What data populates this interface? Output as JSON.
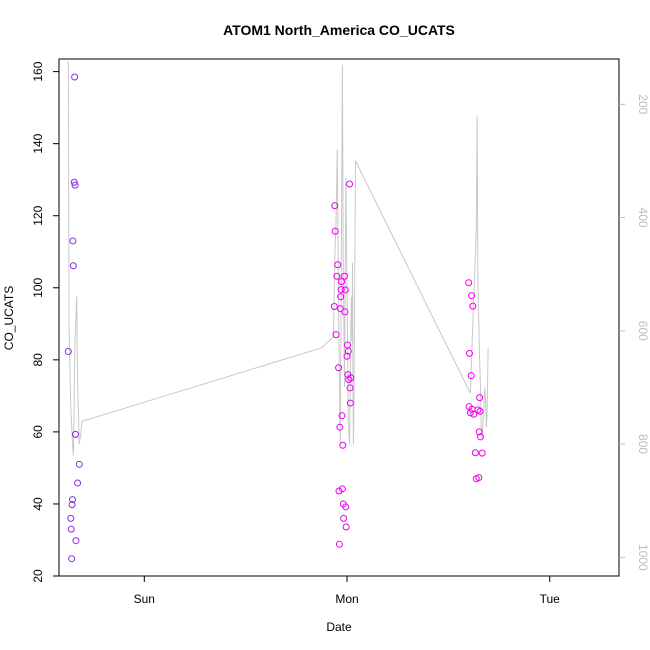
{
  "chart_data": {
    "type": "scatter",
    "title": "ATOM1 North_America CO_UCATS",
    "xlabel": "Date",
    "ylabel": "CO_UCATS",
    "x_unit": "hours since Sat 00:00",
    "xlim": [
      37.9,
      104.2
    ],
    "ylim": [
      20,
      163.5
    ],
    "x_ticks": [
      {
        "value": 48,
        "label": "Sun"
      },
      {
        "value": 72,
        "label": "Mon"
      },
      {
        "value": 96,
        "label": "Tue"
      }
    ],
    "y_ticks": [
      20,
      40,
      60,
      80,
      100,
      120,
      140,
      160
    ],
    "y2_label_color": "#bdbdbd",
    "y2_line_color": "#c8c8c8",
    "y2": {
      "range_top": 120,
      "range_bottom": 1033,
      "ticks": [
        200,
        400,
        600,
        800,
        1000
      ],
      "reversed": true
    },
    "gray_line": {
      "name": "pressure",
      "x": [
        39.0,
        39.1,
        39.3,
        39.5,
        39.6,
        39.8,
        40.0,
        40.1,
        40.3,
        40.5,
        40.6,
        69.0,
        70.4,
        70.55,
        70.7,
        70.85,
        71.0,
        71.1,
        71.2,
        71.3,
        71.45,
        71.55,
        71.7,
        71.85,
        72.0,
        72.15,
        72.3,
        72.5,
        72.6,
        72.65,
        72.7,
        72.75,
        72.8,
        73.0,
        86.6,
        87.3,
        87.4,
        87.5,
        87.7,
        87.8,
        87.9,
        88.0,
        88.1,
        88.2,
        88.3,
        88.4,
        88.5,
        88.6,
        88.7
      ],
      "y": [
        125,
        600,
        735,
        800,
        820,
        620,
        540,
        690,
        800,
        780,
        760,
        630,
        610,
        470,
        410,
        280,
        560,
        680,
        800,
        560,
        130,
        470,
        700,
        330,
        520,
        760,
        800,
        540,
        620,
        480,
        670,
        800,
        760,
        300,
        710,
        420,
        220,
        510,
        650,
        700,
        780,
        790,
        760,
        740,
        700,
        720,
        770,
        740,
        630
      ]
    },
    "series": [
      {
        "name": "purple",
        "color": "#8a2be2",
        "x": [
          39.0,
          39.3,
          39.35,
          39.4,
          39.45,
          39.5,
          39.55,
          39.6,
          39.7,
          39.75,
          39.8,
          39.85,
          39.9
        ],
        "y": [
          82.3,
          36.0,
          33.0,
          24.8,
          39.8,
          41.2,
          113.0,
          106.1,
          129.3,
          158.5,
          128.5,
          59.3,
          29.8
        ]
      },
      {
        "name": "extra-purple",
        "color": "#8a2be2",
        "x": [
          40.1,
          40.3
        ],
        "y": [
          45.8,
          51.0
        ]
      },
      {
        "name": "magenta",
        "color": "#ee00ee",
        "x": [
          70.5,
          70.55,
          70.6,
          70.7,
          70.8,
          70.9,
          71.0,
          71.05,
          71.1,
          71.15,
          71.2,
          71.25,
          71.3,
          71.35,
          71.4,
          71.45,
          71.5,
          71.55,
          71.6,
          71.7,
          71.75,
          71.8,
          71.85,
          71.9,
          72.0,
          72.05,
          72.1,
          72.15,
          72.2,
          72.3,
          72.35,
          72.4,
          72.45,
          86.4,
          86.45,
          86.5,
          86.6,
          86.7,
          86.75,
          86.8,
          86.9,
          87.0,
          87.2,
          87.3,
          87.5,
          87.6,
          87.65,
          87.7,
          87.75,
          87.8
        ],
        "y": [
          94.8,
          122.8,
          115.7,
          87.0,
          103.2,
          106.4,
          77.8,
          43.6,
          28.8,
          61.3,
          94.2,
          97.5,
          99.5,
          101.7,
          64.5,
          44.2,
          56.3,
          40.0,
          36.0,
          103.2,
          93.3,
          99.4,
          39.2,
          33.6,
          81.0,
          84.1,
          75.9,
          82.4,
          74.5,
          128.8,
          72.2,
          68.0,
          75.0,
          101.4,
          67.0,
          81.8,
          65.3,
          75.6,
          97.8,
          66.3,
          94.9,
          64.9,
          54.2,
          47.0,
          66.1,
          47.3,
          60.0,
          69.5,
          65.7,
          58.6
        ]
      },
      {
        "name": "magenta-extra",
        "color": "#ee00ee",
        "x": [
          88.0
        ],
        "y": [
          54.1
        ]
      }
    ]
  }
}
